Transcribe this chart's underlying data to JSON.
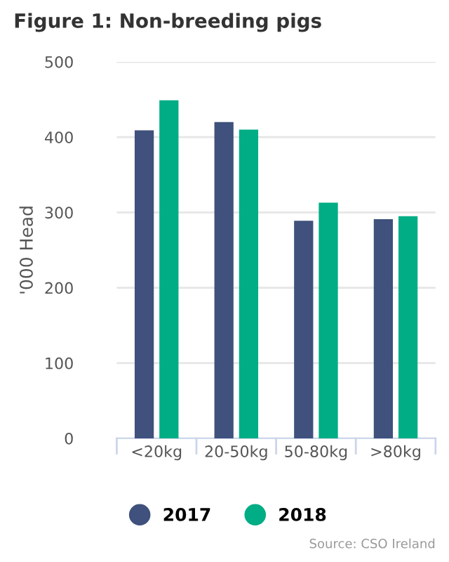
{
  "chart_data": {
    "type": "bar",
    "title": "Figure 1: Non-breeding pigs",
    "ylabel": "'000 Head",
    "categories": [
      "<20kg",
      "20-50kg",
      "50-80kg",
      ">80kg"
    ],
    "series": [
      {
        "name": "2017",
        "color": "#3f517c",
        "values": [
          409,
          420,
          289,
          291
        ]
      },
      {
        "name": "2018",
        "color": "#00ad85",
        "values": [
          449,
          410,
          313,
          295
        ]
      }
    ],
    "ylim": [
      0,
      500
    ],
    "yticks": [
      0,
      100,
      200,
      300,
      400,
      500
    ],
    "grid": "y",
    "legend": "bottom",
    "annotations": [
      "Source: CSO Ireland"
    ]
  }
}
